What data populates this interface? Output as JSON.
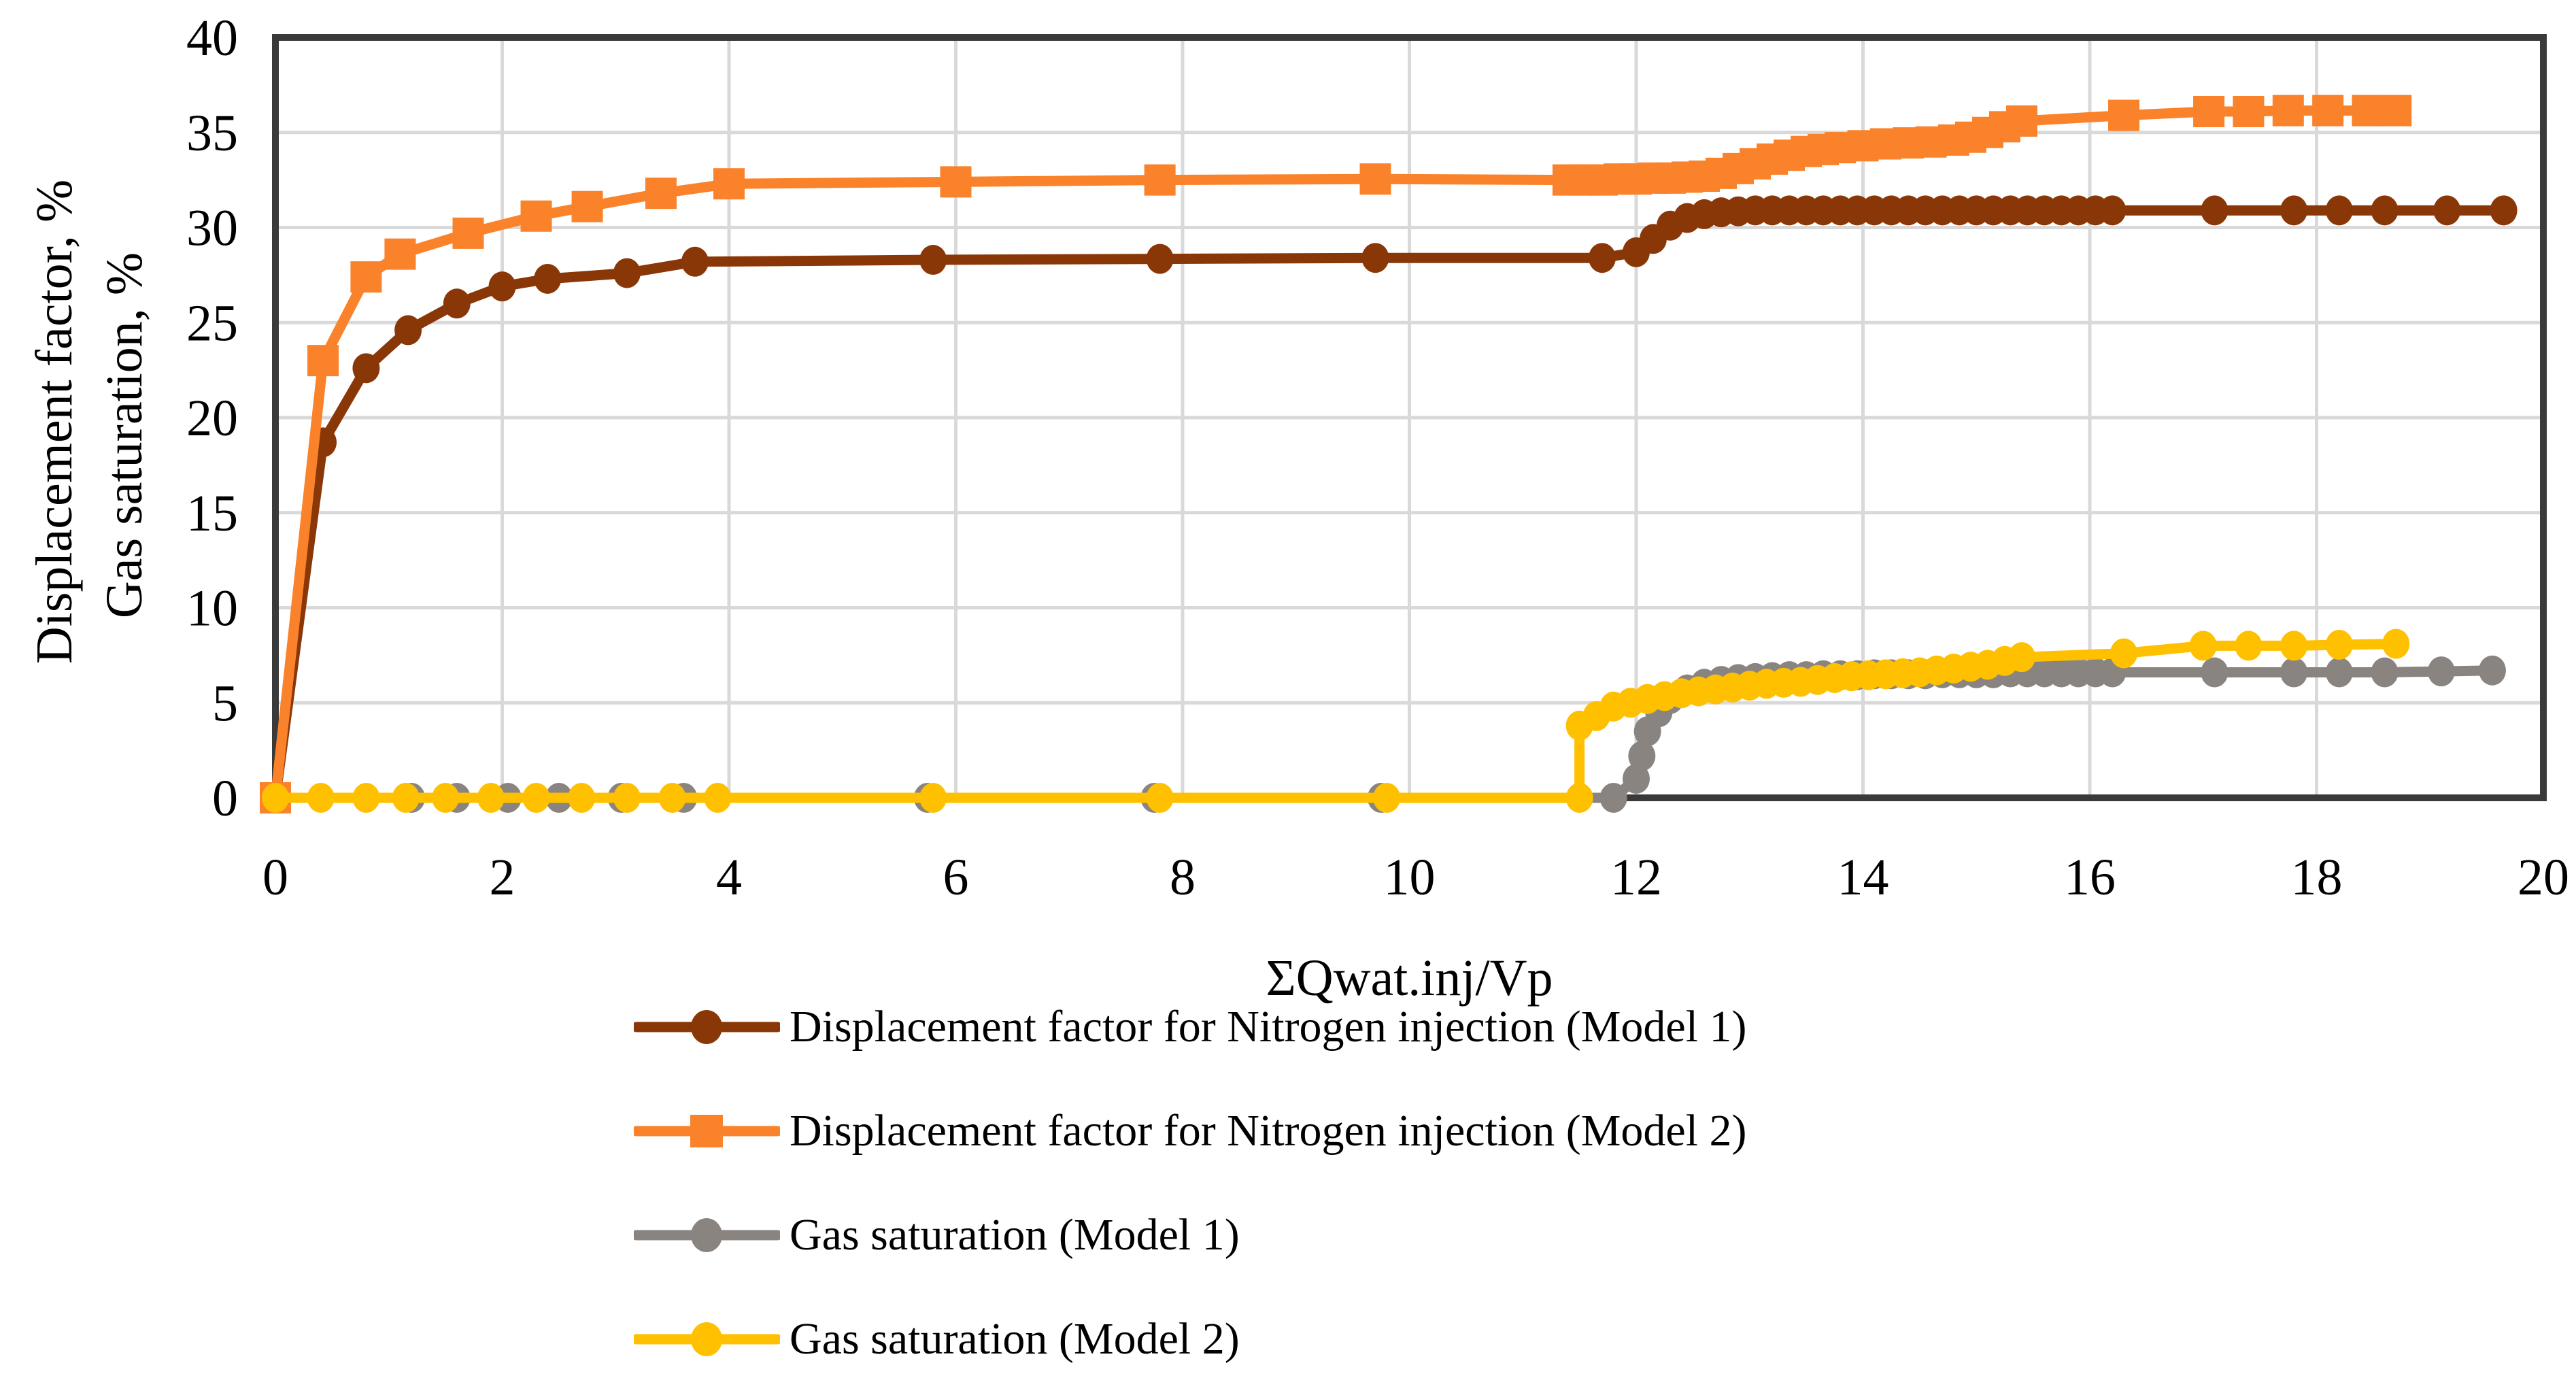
{
  "chart_data": {
    "type": "line",
    "title": "",
    "xlabel": "ΣQwat.inj/Vp",
    "ylabel_lines": [
      "Displacement factor, %",
      "Gas saturation, %"
    ],
    "xlim": [
      0,
      20
    ],
    "ylim": [
      0,
      40
    ],
    "x_ticks": [
      0,
      2,
      4,
      6,
      8,
      10,
      12,
      14,
      16,
      18,
      20
    ],
    "y_ticks": [
      0,
      5,
      10,
      15,
      20,
      25,
      30,
      35,
      40
    ],
    "grid": {
      "on": true,
      "color": "#d9d9d9",
      "x_step": 2,
      "y_step": 5
    },
    "axis_color": "#3a3a3a",
    "legend_position": "bottom-left",
    "series": [
      {
        "name": "Displacement factor for Nitrogen injection (Model 1)",
        "color": "#8A3708",
        "marker": "circle",
        "points": [
          [
            0,
            0
          ],
          [
            0.42,
            18.7
          ],
          [
            0.8,
            22.6
          ],
          [
            1.17,
            24.6
          ],
          [
            1.6,
            26.0
          ],
          [
            2.0,
            26.9
          ],
          [
            2.4,
            27.3
          ],
          [
            3.1,
            27.6
          ],
          [
            3.7,
            28.2
          ],
          [
            5.8,
            28.3
          ],
          [
            7.8,
            28.35
          ],
          [
            9.7,
            28.4
          ],
          [
            11.7,
            28.4
          ],
          [
            12.0,
            28.7
          ],
          [
            12.15,
            29.4
          ],
          [
            12.3,
            30.1
          ],
          [
            12.45,
            30.5
          ],
          [
            12.6,
            30.7
          ],
          [
            12.75,
            30.8
          ],
          [
            12.9,
            30.85
          ],
          [
            13.05,
            30.9
          ],
          [
            13.2,
            30.9
          ],
          [
            13.35,
            30.9
          ],
          [
            13.5,
            30.9
          ],
          [
            13.65,
            30.9
          ],
          [
            13.8,
            30.9
          ],
          [
            13.95,
            30.9
          ],
          [
            14.1,
            30.9
          ],
          [
            14.25,
            30.9
          ],
          [
            14.4,
            30.9
          ],
          [
            14.55,
            30.9
          ],
          [
            14.7,
            30.9
          ],
          [
            14.85,
            30.9
          ],
          [
            15.0,
            30.9
          ],
          [
            15.15,
            30.9
          ],
          [
            15.3,
            30.9
          ],
          [
            15.45,
            30.9
          ],
          [
            15.6,
            30.9
          ],
          [
            15.75,
            30.9
          ],
          [
            15.9,
            30.9
          ],
          [
            16.05,
            30.9
          ],
          [
            16.2,
            30.9
          ],
          [
            17.1,
            30.9
          ],
          [
            17.8,
            30.9
          ],
          [
            18.2,
            30.9
          ],
          [
            18.6,
            30.9
          ],
          [
            19.15,
            30.9
          ],
          [
            19.65,
            30.9
          ]
        ]
      },
      {
        "name": "Displacement factor for Nitrogen injection (Model 2)",
        "color": "#F9822A",
        "marker": "square",
        "points": [
          [
            0,
            0
          ],
          [
            0.42,
            23.0
          ],
          [
            0.8,
            27.4
          ],
          [
            1.1,
            28.6
          ],
          [
            1.7,
            29.7
          ],
          [
            2.3,
            30.6
          ],
          [
            2.75,
            31.1
          ],
          [
            3.4,
            31.8
          ],
          [
            4.0,
            32.3
          ],
          [
            6.0,
            32.4
          ],
          [
            7.8,
            32.5
          ],
          [
            9.7,
            32.55
          ],
          [
            11.4,
            32.5
          ],
          [
            11.55,
            32.5
          ],
          [
            11.7,
            32.5
          ],
          [
            11.85,
            32.55
          ],
          [
            12.0,
            32.55
          ],
          [
            12.15,
            32.6
          ],
          [
            12.3,
            32.6
          ],
          [
            12.45,
            32.65
          ],
          [
            12.6,
            32.7
          ],
          [
            12.75,
            32.85
          ],
          [
            12.9,
            33.1
          ],
          [
            13.05,
            33.35
          ],
          [
            13.2,
            33.6
          ],
          [
            13.35,
            33.8
          ],
          [
            13.5,
            34.0
          ],
          [
            13.65,
            34.1
          ],
          [
            13.8,
            34.2
          ],
          [
            14.0,
            34.3
          ],
          [
            14.2,
            34.4
          ],
          [
            14.4,
            34.45
          ],
          [
            14.6,
            34.5
          ],
          [
            14.8,
            34.6
          ],
          [
            14.95,
            34.75
          ],
          [
            15.1,
            35.0
          ],
          [
            15.25,
            35.3
          ],
          [
            15.4,
            35.6
          ],
          [
            16.3,
            35.9
          ],
          [
            17.05,
            36.1
          ],
          [
            17.4,
            36.1
          ],
          [
            17.75,
            36.15
          ],
          [
            18.1,
            36.15
          ],
          [
            18.45,
            36.15
          ],
          [
            18.7,
            36.15
          ]
        ]
      },
      {
        "name": "Gas saturation (Model 1)",
        "color": "#8A8481",
        "marker": "circle",
        "points": [
          [
            1.2,
            0
          ],
          [
            1.6,
            0
          ],
          [
            2.05,
            0
          ],
          [
            2.5,
            0
          ],
          [
            3.05,
            0
          ],
          [
            3.6,
            0
          ],
          [
            5.75,
            0
          ],
          [
            7.75,
            0
          ],
          [
            9.75,
            0
          ],
          [
            11.8,
            0
          ],
          [
            12.0,
            1.0
          ],
          [
            12.05,
            2.2
          ],
          [
            12.1,
            3.5
          ],
          [
            12.2,
            4.5
          ],
          [
            12.3,
            5.2
          ],
          [
            12.45,
            5.7
          ],
          [
            12.6,
            6.0
          ],
          [
            12.75,
            6.15
          ],
          [
            12.9,
            6.25
          ],
          [
            13.05,
            6.3
          ],
          [
            13.2,
            6.35
          ],
          [
            13.35,
            6.4
          ],
          [
            13.5,
            6.4
          ],
          [
            13.65,
            6.45
          ],
          [
            13.8,
            6.45
          ],
          [
            13.95,
            6.45
          ],
          [
            14.1,
            6.5
          ],
          [
            14.25,
            6.5
          ],
          [
            14.4,
            6.5
          ],
          [
            14.55,
            6.5
          ],
          [
            14.7,
            6.55
          ],
          [
            14.85,
            6.55
          ],
          [
            15.0,
            6.55
          ],
          [
            15.15,
            6.55
          ],
          [
            15.3,
            6.6
          ],
          [
            15.45,
            6.6
          ],
          [
            15.6,
            6.6
          ],
          [
            15.75,
            6.6
          ],
          [
            15.9,
            6.6
          ],
          [
            16.05,
            6.6
          ],
          [
            16.2,
            6.6
          ],
          [
            17.1,
            6.6
          ],
          [
            17.8,
            6.6
          ],
          [
            18.2,
            6.6
          ],
          [
            18.6,
            6.6
          ],
          [
            19.1,
            6.65
          ],
          [
            19.55,
            6.7
          ]
        ]
      },
      {
        "name": "Gas saturation (Model 2)",
        "color": "#FFC000",
        "marker": "circle",
        "points": [
          [
            0,
            0
          ],
          [
            0.4,
            0
          ],
          [
            0.8,
            0
          ],
          [
            1.15,
            0
          ],
          [
            1.5,
            0
          ],
          [
            1.9,
            0
          ],
          [
            2.3,
            0
          ],
          [
            2.7,
            0
          ],
          [
            3.1,
            0
          ],
          [
            3.5,
            0
          ],
          [
            3.9,
            0
          ],
          [
            5.8,
            0
          ],
          [
            7.8,
            0
          ],
          [
            9.8,
            0
          ],
          [
            11.5,
            0
          ],
          [
            11.5,
            3.8
          ],
          [
            11.65,
            4.3
          ],
          [
            11.8,
            4.8
          ],
          [
            11.95,
            5.0
          ],
          [
            12.1,
            5.2
          ],
          [
            12.25,
            5.35
          ],
          [
            12.4,
            5.5
          ],
          [
            12.55,
            5.6
          ],
          [
            12.7,
            5.7
          ],
          [
            12.85,
            5.8
          ],
          [
            13.0,
            5.9
          ],
          [
            13.15,
            6.0
          ],
          [
            13.3,
            6.05
          ],
          [
            13.45,
            6.1
          ],
          [
            13.6,
            6.2
          ],
          [
            13.75,
            6.3
          ],
          [
            13.9,
            6.4
          ],
          [
            14.05,
            6.45
          ],
          [
            14.2,
            6.5
          ],
          [
            14.35,
            6.55
          ],
          [
            14.5,
            6.6
          ],
          [
            14.65,
            6.7
          ],
          [
            14.8,
            6.8
          ],
          [
            14.95,
            6.9
          ],
          [
            15.1,
            7.0
          ],
          [
            15.25,
            7.2
          ],
          [
            15.4,
            7.4
          ],
          [
            16.3,
            7.6
          ],
          [
            17.0,
            8.0
          ],
          [
            17.4,
            8.0
          ],
          [
            17.8,
            8.0
          ],
          [
            18.2,
            8.05
          ],
          [
            18.7,
            8.1
          ]
        ]
      }
    ]
  }
}
